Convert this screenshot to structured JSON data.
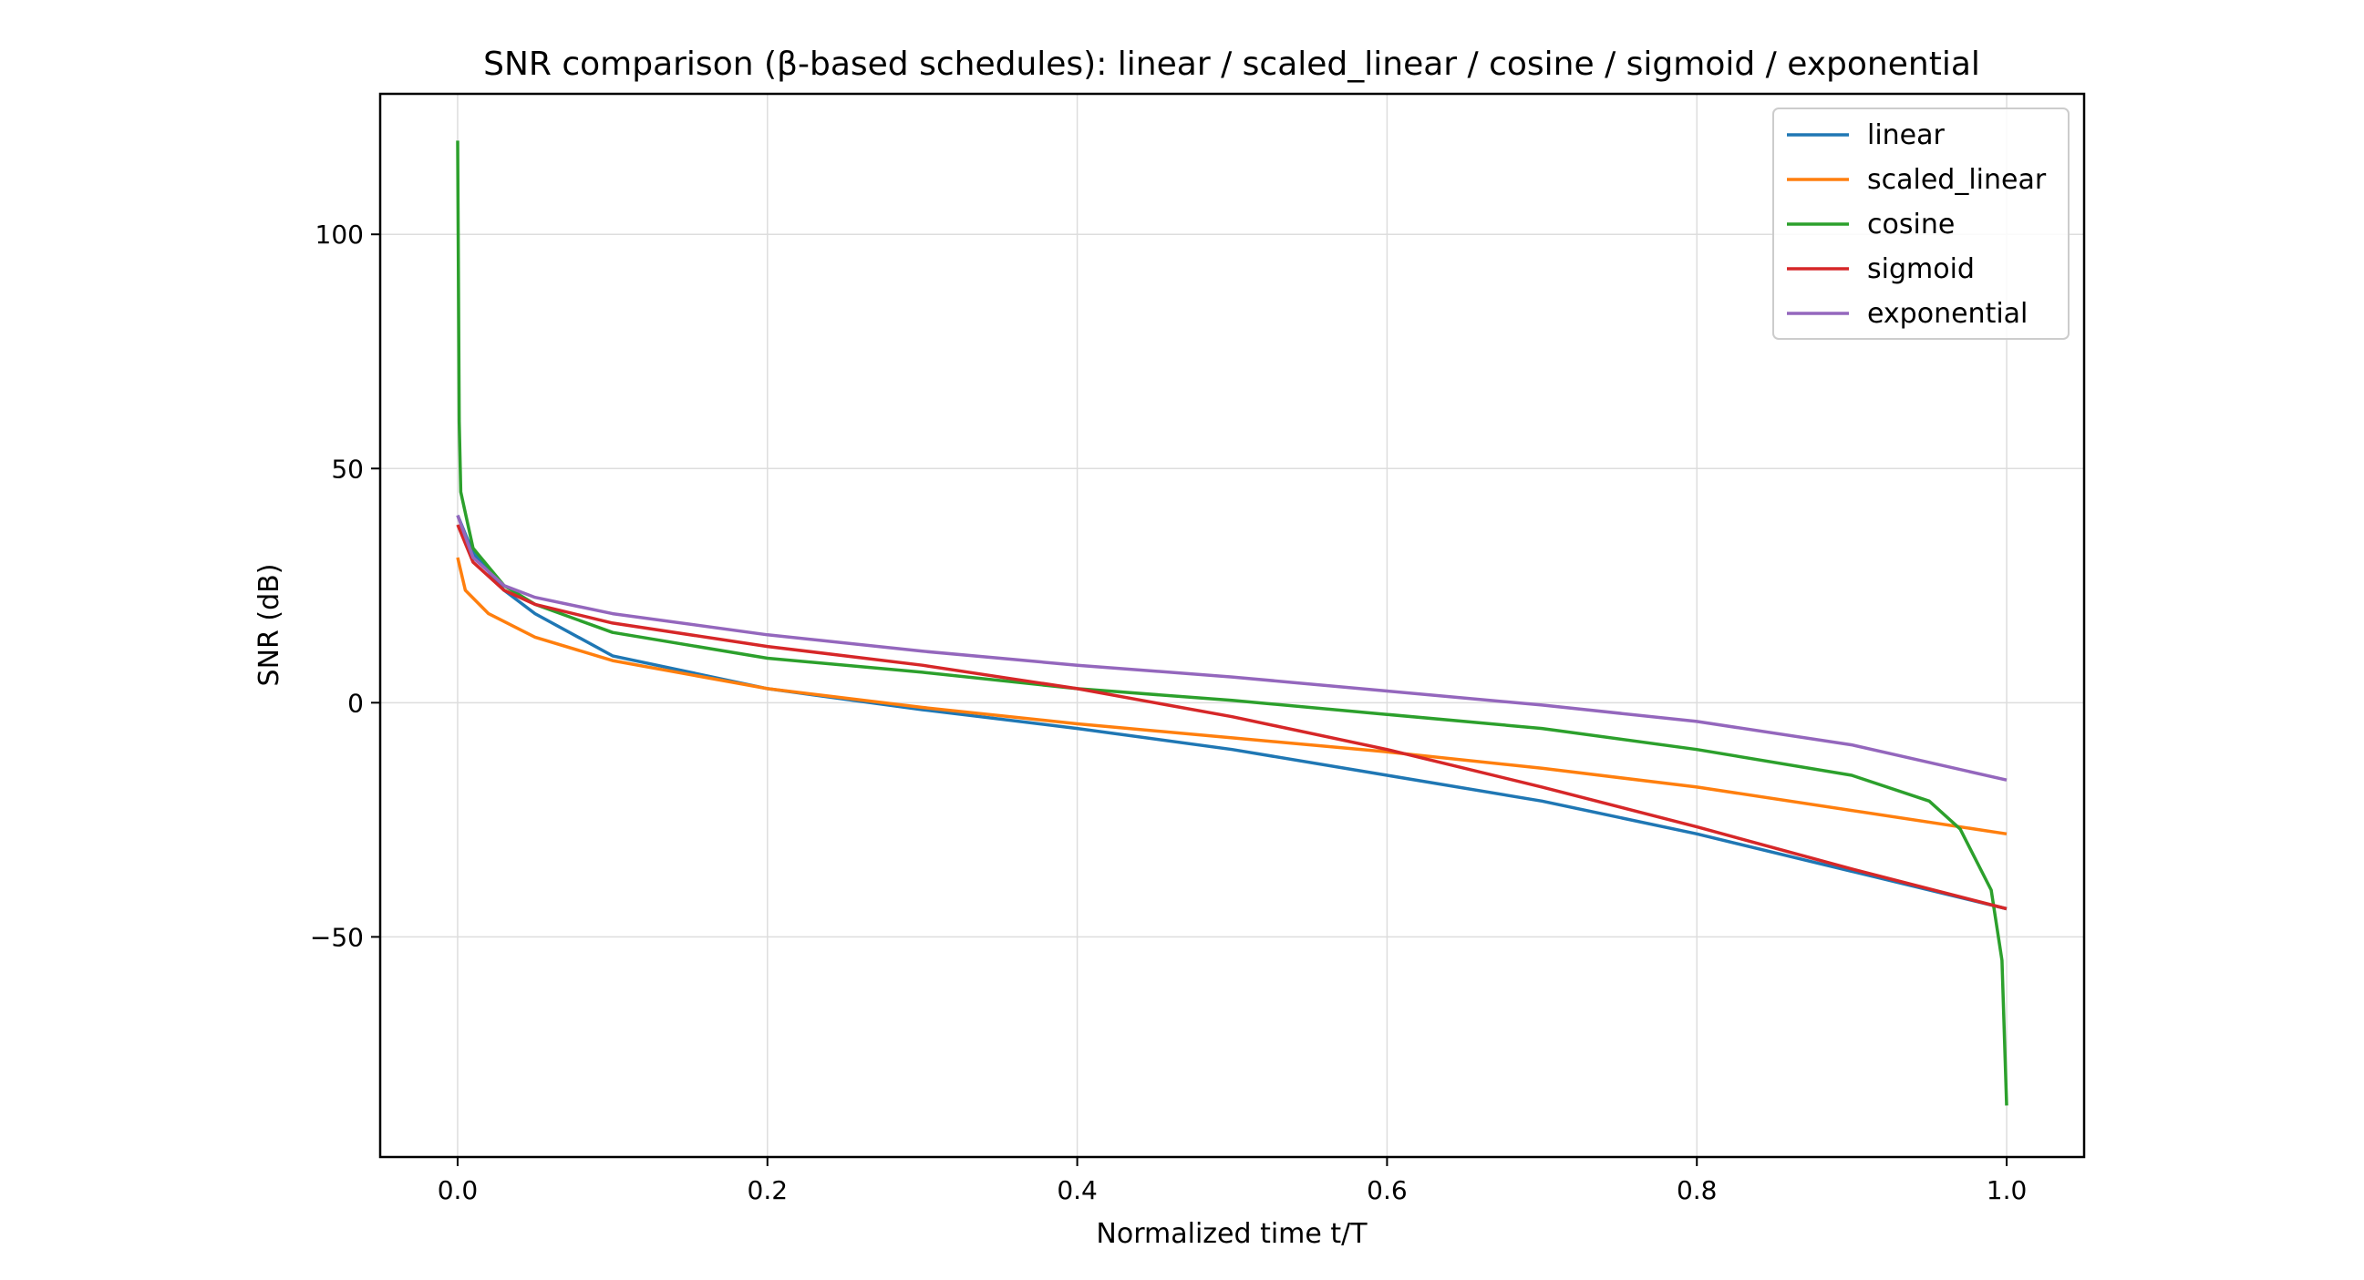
{
  "chart_data": {
    "type": "line",
    "title": "SNR comparison (β-based schedules): linear / scaled_linear / cosine / sigmoid / exponential",
    "xlabel": "Normalized time t/T",
    "ylabel": "SNR (dB)",
    "xlim": [
      -0.05,
      1.05
    ],
    "ylim": [
      -97,
      130
    ],
    "xticks": [
      0.0,
      0.2,
      0.4,
      0.6,
      0.8,
      1.0
    ],
    "xtick_labels": [
      "0.0",
      "0.2",
      "0.4",
      "0.6",
      "0.8",
      "1.0"
    ],
    "yticks": [
      100,
      50,
      0,
      -50
    ],
    "ytick_labels": [
      "100",
      "50",
      "0",
      "−50"
    ],
    "grid": true,
    "legend_position": "top-right",
    "series": [
      {
        "name": "linear",
        "color": "#1f77b4",
        "x": [
          0,
          0.01,
          0.03,
          0.05,
          0.1,
          0.2,
          0.3,
          0.4,
          0.5,
          0.6,
          0.7,
          0.8,
          0.9,
          1.0
        ],
        "y": [
          40,
          32,
          24,
          19,
          10,
          3,
          -1.5,
          -5.5,
          -10,
          -15.5,
          -21,
          -28,
          -36,
          -44
        ]
      },
      {
        "name": "scaled_linear",
        "color": "#ff7f0e",
        "x": [
          0,
          0.005,
          0.02,
          0.05,
          0.1,
          0.2,
          0.3,
          0.4,
          0.5,
          0.6,
          0.7,
          0.8,
          0.9,
          1.0
        ],
        "y": [
          31,
          24,
          19,
          14,
          9,
          3,
          -1,
          -4.5,
          -7.5,
          -10.5,
          -14,
          -18,
          -23,
          -28
        ]
      },
      {
        "name": "cosine",
        "color": "#2ca02c",
        "x": [
          0,
          0.001,
          0.002,
          0.01,
          0.03,
          0.05,
          0.1,
          0.2,
          0.3,
          0.4,
          0.5,
          0.6,
          0.7,
          0.8,
          0.9,
          0.95,
          0.97,
          0.99,
          0.997,
          1.0
        ],
        "y": [
          120,
          60,
          45,
          33,
          25,
          21,
          15,
          9.5,
          6.5,
          3,
          0.5,
          -2.5,
          -5.5,
          -10,
          -15.5,
          -21,
          -27,
          -40,
          -55,
          -86
        ]
      },
      {
        "name": "sigmoid",
        "color": "#d62728",
        "x": [
          0,
          0.01,
          0.03,
          0.05,
          0.1,
          0.2,
          0.3,
          0.4,
          0.5,
          0.6,
          0.7,
          0.8,
          0.9,
          1.0
        ],
        "y": [
          38,
          30,
          24,
          21,
          17,
          12,
          8,
          3,
          -3,
          -10,
          -18,
          -26.5,
          -35.5,
          -44
        ]
      },
      {
        "name": "exponential",
        "color": "#9467bd",
        "x": [
          0,
          0.01,
          0.03,
          0.05,
          0.1,
          0.2,
          0.3,
          0.4,
          0.5,
          0.6,
          0.7,
          0.8,
          0.9,
          1.0
        ],
        "y": [
          40,
          31,
          25,
          22.5,
          19,
          14.5,
          11,
          8,
          5.5,
          2.5,
          -0.5,
          -4,
          -9,
          -16.5
        ]
      }
    ]
  }
}
